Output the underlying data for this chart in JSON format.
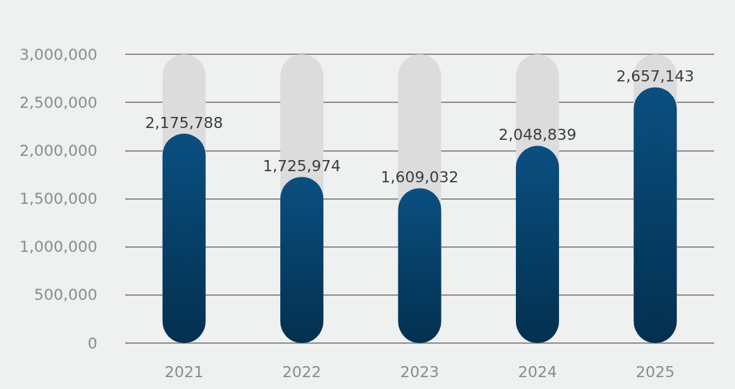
{
  "chart_data": {
    "type": "bar",
    "categories": [
      "2021",
      "2022",
      "2023",
      "2024",
      "2025"
    ],
    "values": [
      2175788,
      1725974,
      1609032,
      2048839,
      2657143
    ],
    "value_labels": [
      "2,175,788",
      "1,725,974",
      "1,609,032",
      "2,048,839",
      "2,657,143"
    ],
    "color": "#0a4f80",
    "grid": "y",
    "ylim": [
      0,
      3000000
    ],
    "yticks": [
      0,
      {
        "value": 500000,
        "label": "500,000"
      },
      {
        "value": 1000000,
        "label": "1,000,000"
      },
      {
        "value": 1500000,
        "label": "1,500,000"
      },
      {
        "value": 2000000,
        "label": "2,000,000"
      },
      {
        "value": 2500000,
        "label": "2,500,000"
      },
      {
        "value": 3000000,
        "label": "3,000,000"
      }
    ]
  }
}
